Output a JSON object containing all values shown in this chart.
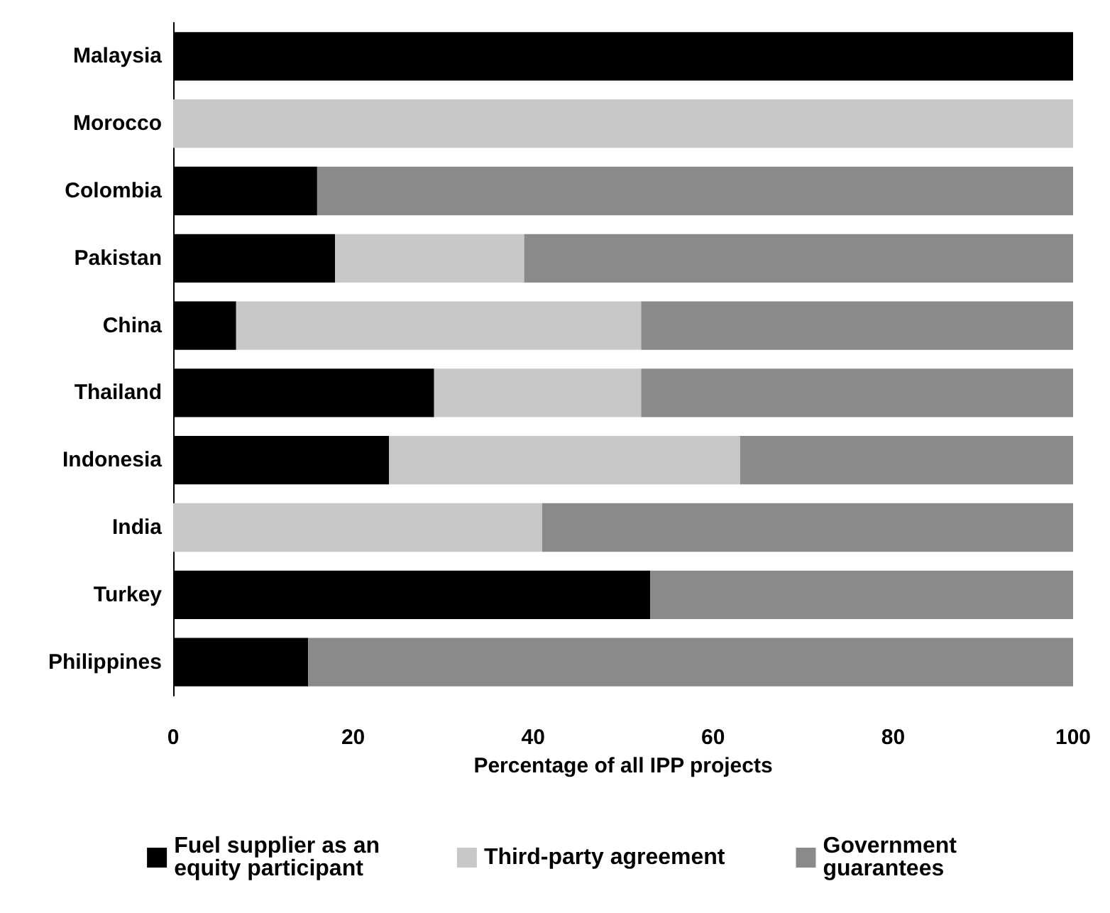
{
  "chart_data": {
    "type": "bar",
    "orientation": "horizontal",
    "stacked": true,
    "xlabel": "Percentage of all IPP projects",
    "categories": [
      "Malaysia",
      "Morocco",
      "Colombia",
      "Pakistan",
      "China",
      "Thailand",
      "Indonesia",
      "India",
      "Turkey",
      "Philippines"
    ],
    "series": [
      {
        "name": "Fuel supplier as an equity participant",
        "color": "#000000",
        "values": [
          100,
          0,
          16,
          18,
          7,
          29,
          24,
          0,
          53,
          15
        ]
      },
      {
        "name": "Third-party agreement",
        "color": "#c8c8c8",
        "values": [
          0,
          100,
          0,
          21,
          45,
          23,
          39,
          41,
          0,
          0
        ]
      },
      {
        "name": "Government guarantees",
        "color": "#8a8a8a",
        "values": [
          0,
          0,
          84,
          61,
          48,
          48,
          37,
          59,
          47,
          85
        ]
      }
    ],
    "xlim": [
      0,
      100
    ],
    "xticks": [
      0,
      20,
      40,
      60,
      80,
      100
    ],
    "grid": false,
    "legend": "bottom"
  }
}
